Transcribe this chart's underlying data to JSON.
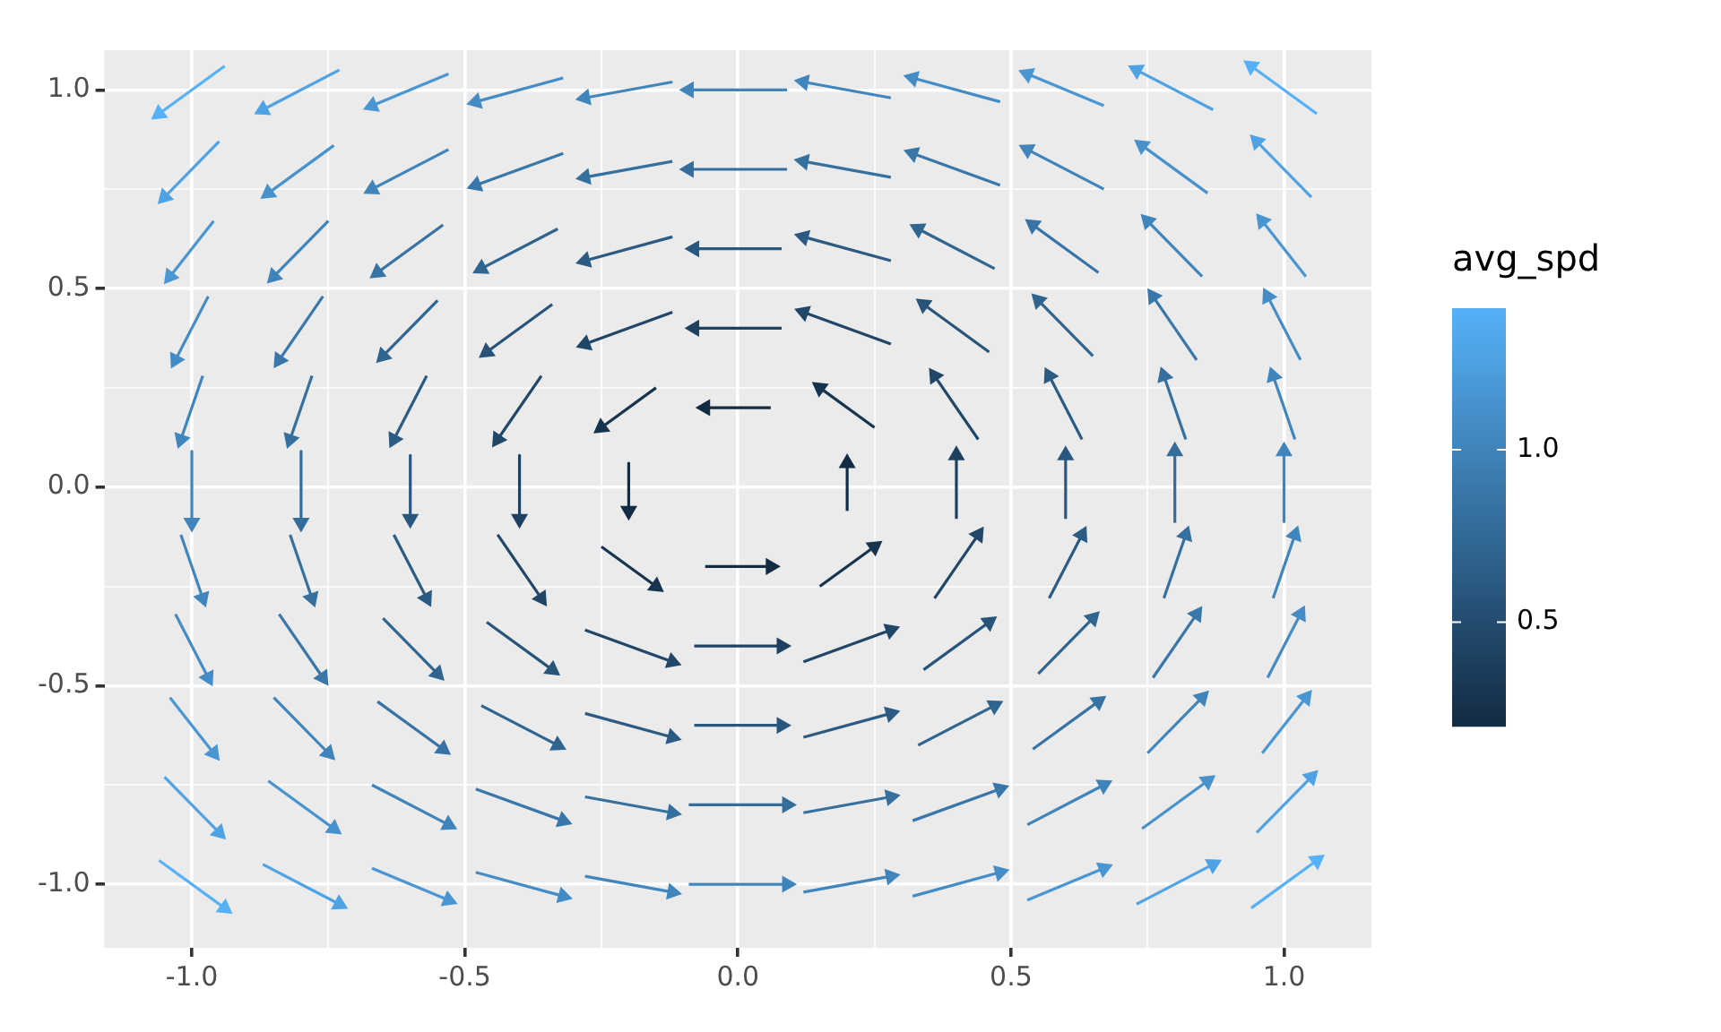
{
  "chart_data": {
    "type": "line",
    "clabel": "avg_spd",
    "clim": [
      0.2,
      1.41
    ],
    "cticks": [
      0.5,
      {
        "value": 1,
        "label": "1.0"
      }
    ],
    "grid": true,
    "marker": "triangle",
    "xlim": [
      -1.16,
      1.16
    ],
    "ylim": [
      -1.16,
      1.1
    ],
    "xticks": [
      {
        "value": -1,
        "label": "-1.0"
      },
      {
        "value": -0.75,
        "label": null
      },
      {
        "value": -0.5,
        "label": "-0.5"
      },
      {
        "value": -0.25,
        "label": null
      },
      {
        "value": 0,
        "label": "0.0"
      },
      {
        "value": 0.25,
        "label": null
      },
      {
        "value": 0.5,
        "label": "0.5"
      },
      {
        "value": 0.75,
        "label": null
      },
      {
        "value": 1,
        "label": "1.0"
      }
    ],
    "yticks": [
      {
        "value": -1,
        "label": "-1.0"
      },
      {
        "value": -0.75,
        "label": null
      },
      {
        "value": -0.5,
        "label": "-0.5"
      },
      {
        "value": -0.25,
        "label": null
      },
      {
        "value": 0,
        "label": "0.0"
      },
      {
        "value": 0.25,
        "label": null
      },
      {
        "value": 0.5,
        "label": "0.5"
      },
      {
        "value": 0.75,
        "label": null
      },
      {
        "value": 1,
        "label": "1.0"
      }
    ],
    "series": [
      {
        "x": [
          -0.94,
          -1.06
        ],
        "values": [
          1.06,
          0.94
        ],
        "color": "#56b1f7"
      },
      {
        "x": [
          -0.73,
          -0.87
        ],
        "values": [
          1.05,
          0.95
        ],
        "color": "#4fa3e4"
      },
      {
        "x": [
          -0.53,
          -0.67
        ],
        "values": [
          1.04,
          0.96
        ],
        "color": "#4996d3"
      },
      {
        "x": [
          -0.32,
          -0.48
        ],
        "values": [
          1.03,
          0.97
        ],
        "color": "#448cc6"
      },
      {
        "x": [
          -0.12,
          -0.28
        ],
        "values": [
          1.02,
          0.98
        ],
        "color": "#4086bd"
      },
      {
        "x": [
          0.09,
          -0.09
        ],
        "values": [
          1.0,
          1.0
        ],
        "color": "#3f84ba"
      },
      {
        "x": [
          0.28,
          0.12
        ],
        "values": [
          0.98,
          1.02
        ],
        "color": "#4086bd"
      },
      {
        "x": [
          0.48,
          0.32
        ],
        "values": [
          0.97,
          1.03
        ],
        "color": "#448cc6"
      },
      {
        "x": [
          0.67,
          0.53
        ],
        "values": [
          0.96,
          1.04
        ],
        "color": "#4996d3"
      },
      {
        "x": [
          0.87,
          0.73
        ],
        "values": [
          0.95,
          1.05
        ],
        "color": "#4fa3e4"
      },
      {
        "x": [
          1.06,
          0.94
        ],
        "values": [
          0.94,
          1.06
        ],
        "color": "#56b1f7"
      },
      {
        "x": [
          -0.95,
          -1.05
        ],
        "values": [
          0.87,
          0.73
        ],
        "color": "#4fa3e4"
      },
      {
        "x": [
          -0.74,
          -0.86
        ],
        "values": [
          0.86,
          0.74
        ],
        "color": "#4792cd"
      },
      {
        "x": [
          -0.53,
          -0.67
        ],
        "values": [
          0.85,
          0.75
        ],
        "color": "#3f84ba"
      },
      {
        "x": [
          -0.32,
          -0.48
        ],
        "values": [
          0.84,
          0.76
        ],
        "color": "#3977aa"
      },
      {
        "x": [
          -0.12,
          -0.28
        ],
        "values": [
          0.82,
          0.78
        ],
        "color": "#35709f"
      },
      {
        "x": [
          0.09,
          -0.09
        ],
        "values": [
          0.8,
          0.8
        ],
        "color": "#346d9c"
      },
      {
        "x": [
          0.28,
          0.12
        ],
        "values": [
          0.78,
          0.82
        ],
        "color": "#35709f"
      },
      {
        "x": [
          0.48,
          0.32
        ],
        "values": [
          0.76,
          0.84
        ],
        "color": "#3977aa"
      },
      {
        "x": [
          0.67,
          0.53
        ],
        "values": [
          0.75,
          0.85
        ],
        "color": "#3f84ba"
      },
      {
        "x": [
          0.86,
          0.74
        ],
        "values": [
          0.74,
          0.86
        ],
        "color": "#4792cd"
      },
      {
        "x": [
          1.05,
          0.95
        ],
        "values": [
          0.73,
          0.87
        ],
        "color": "#4fa3e4"
      },
      {
        "x": [
          -0.96,
          -1.04
        ],
        "values": [
          0.67,
          0.53
        ],
        "color": "#4996d3"
      },
      {
        "x": [
          -0.75,
          -0.85
        ],
        "values": [
          0.67,
          0.53
        ],
        "color": "#3f84ba"
      },
      {
        "x": [
          -0.54,
          -0.66
        ],
        "values": [
          0.66,
          0.54
        ],
        "color": "#3773a4"
      },
      {
        "x": [
          -0.33,
          -0.47
        ],
        "values": [
          0.65,
          0.55
        ],
        "color": "#306590"
      },
      {
        "x": [
          -0.12,
          -0.28
        ],
        "values": [
          0.63,
          0.57
        ],
        "color": "#2b5b83"
      },
      {
        "x": [
          0.08,
          -0.08
        ],
        "values": [
          0.6,
          0.6
        ],
        "color": "#29577f"
      },
      {
        "x": [
          0.28,
          0.12
        ],
        "values": [
          0.57,
          0.63
        ],
        "color": "#2b5b83"
      },
      {
        "x": [
          0.47,
          0.33
        ],
        "values": [
          0.55,
          0.65
        ],
        "color": "#306590"
      },
      {
        "x": [
          0.66,
          0.54
        ],
        "values": [
          0.54,
          0.66
        ],
        "color": "#3773a4"
      },
      {
        "x": [
          0.85,
          0.75
        ],
        "values": [
          0.53,
          0.67
        ],
        "color": "#3f84ba"
      },
      {
        "x": [
          1.04,
          0.96
        ],
        "values": [
          0.53,
          0.67
        ],
        "color": "#4996d3"
      },
      {
        "x": [
          -0.97,
          -1.03
        ],
        "values": [
          0.48,
          0.32
        ],
        "color": "#448cc6"
      },
      {
        "x": [
          -0.76,
          -0.84
        ],
        "values": [
          0.48,
          0.32
        ],
        "color": "#3977aa"
      },
      {
        "x": [
          -0.55,
          -0.65
        ],
        "values": [
          0.47,
          0.33
        ],
        "color": "#306590"
      },
      {
        "x": [
          -0.34,
          -0.46
        ],
        "values": [
          0.46,
          0.34
        ],
        "color": "#28547a"
      },
      {
        "x": [
          -0.12,
          -0.28
        ],
        "values": [
          0.44,
          0.36
        ],
        "color": "#214768"
      },
      {
        "x": [
          0.08,
          -0.08
        ],
        "values": [
          0.4,
          0.4
        ],
        "color": "#1e4161"
      },
      {
        "x": [
          0.28,
          0.12
        ],
        "values": [
          0.36,
          0.44
        ],
        "color": "#214768"
      },
      {
        "x": [
          0.46,
          0.34
        ],
        "values": [
          0.34,
          0.46
        ],
        "color": "#28547a"
      },
      {
        "x": [
          0.65,
          0.55
        ],
        "values": [
          0.33,
          0.47
        ],
        "color": "#306590"
      },
      {
        "x": [
          0.84,
          0.76
        ],
        "values": [
          0.32,
          0.48
        ],
        "color": "#3977aa"
      },
      {
        "x": [
          1.03,
          0.97
        ],
        "values": [
          0.32,
          0.48
        ],
        "color": "#448cc6"
      },
      {
        "x": [
          -0.98,
          -1.02
        ],
        "values": [
          0.28,
          0.12
        ],
        "color": "#4086bd"
      },
      {
        "x": [
          -0.78,
          -0.82
        ],
        "values": [
          0.28,
          0.12
        ],
        "color": "#35709f"
      },
      {
        "x": [
          -0.57,
          -0.63
        ],
        "values": [
          0.28,
          0.12
        ],
        "color": "#2b5b83"
      },
      {
        "x": [
          -0.36,
          -0.44
        ],
        "values": [
          0.28,
          0.12
        ],
        "color": "#214768"
      },
      {
        "x": [
          -0.15,
          -0.25
        ],
        "values": [
          0.25,
          0.15
        ],
        "color": "#17344f"
      },
      {
        "x": [
          0.06,
          -0.06
        ],
        "values": [
          0.2,
          0.2
        ],
        "color": "#132b43"
      },
      {
        "x": [
          0.25,
          0.15
        ],
        "values": [
          0.15,
          0.25
        ],
        "color": "#17344f"
      },
      {
        "x": [
          0.44,
          0.36
        ],
        "values": [
          0.12,
          0.28
        ],
        "color": "#214768"
      },
      {
        "x": [
          0.63,
          0.57
        ],
        "values": [
          0.12,
          0.28
        ],
        "color": "#2b5b83"
      },
      {
        "x": [
          0.82,
          0.78
        ],
        "values": [
          0.12,
          0.28
        ],
        "color": "#35709f"
      },
      {
        "x": [
          1.02,
          0.98
        ],
        "values": [
          0.12,
          0.28
        ],
        "color": "#4086bd"
      },
      {
        "x": [
          -1,
          -1
        ],
        "values": [
          0.09,
          -0.09
        ],
        "color": "#3f84ba"
      },
      {
        "x": [
          -0.8,
          -0.8
        ],
        "values": [
          0.09,
          -0.09
        ],
        "color": "#346d9c"
      },
      {
        "x": [
          -0.6,
          -0.6
        ],
        "values": [
          0.08,
          -0.08
        ],
        "color": "#29577f"
      },
      {
        "x": [
          -0.4,
          -0.4
        ],
        "values": [
          0.08,
          -0.08
        ],
        "color": "#1e4161"
      },
      {
        "x": [
          -0.2,
          -0.2
        ],
        "values": [
          0.06,
          -0.06
        ],
        "color": "#132b43"
      },
      {
        "x": [
          0.2,
          0.2
        ],
        "values": [
          -0.06,
          0.06
        ],
        "color": "#132b43"
      },
      {
        "x": [
          0.4,
          0.4
        ],
        "values": [
          -0.08,
          0.08
        ],
        "color": "#1e4161"
      },
      {
        "x": [
          0.6,
          0.6
        ],
        "values": [
          -0.08,
          0.08
        ],
        "color": "#29577f"
      },
      {
        "x": [
          0.8,
          0.8
        ],
        "values": [
          -0.09,
          0.09
        ],
        "color": "#346d9c"
      },
      {
        "x": [
          1,
          1
        ],
        "values": [
          -0.09,
          0.09
        ],
        "color": "#3f84ba"
      },
      {
        "x": [
          -1.02,
          -0.98
        ],
        "values": [
          -0.12,
          -0.28
        ],
        "color": "#4086bd"
      },
      {
        "x": [
          -0.82,
          -0.78
        ],
        "values": [
          -0.12,
          -0.28
        ],
        "color": "#35709f"
      },
      {
        "x": [
          -0.63,
          -0.57
        ],
        "values": [
          -0.12,
          -0.28
        ],
        "color": "#2b5b83"
      },
      {
        "x": [
          -0.44,
          -0.36
        ],
        "values": [
          -0.12,
          -0.28
        ],
        "color": "#214768"
      },
      {
        "x": [
          -0.25,
          -0.15
        ],
        "values": [
          -0.15,
          -0.25
        ],
        "color": "#17344f"
      },
      {
        "x": [
          -0.06,
          0.06
        ],
        "values": [
          -0.2,
          -0.2
        ],
        "color": "#132b43"
      },
      {
        "x": [
          0.15,
          0.25
        ],
        "values": [
          -0.25,
          -0.15
        ],
        "color": "#17344f"
      },
      {
        "x": [
          0.36,
          0.44
        ],
        "values": [
          -0.28,
          -0.12
        ],
        "color": "#214768"
      },
      {
        "x": [
          0.57,
          0.63
        ],
        "values": [
          -0.28,
          -0.12
        ],
        "color": "#2b5b83"
      },
      {
        "x": [
          0.78,
          0.82
        ],
        "values": [
          -0.28,
          -0.12
        ],
        "color": "#35709f"
      },
      {
        "x": [
          0.98,
          1.02
        ],
        "values": [
          -0.28,
          -0.12
        ],
        "color": "#4086bd"
      },
      {
        "x": [
          -1.03,
          -0.97
        ],
        "values": [
          -0.32,
          -0.48
        ],
        "color": "#448cc6"
      },
      {
        "x": [
          -0.84,
          -0.76
        ],
        "values": [
          -0.32,
          -0.48
        ],
        "color": "#3977aa"
      },
      {
        "x": [
          -0.65,
          -0.55
        ],
        "values": [
          -0.33,
          -0.47
        ],
        "color": "#306590"
      },
      {
        "x": [
          -0.46,
          -0.34
        ],
        "values": [
          -0.34,
          -0.46
        ],
        "color": "#28547a"
      },
      {
        "x": [
          -0.28,
          -0.12
        ],
        "values": [
          -0.36,
          -0.44
        ],
        "color": "#214768"
      },
      {
        "x": [
          -0.08,
          0.08
        ],
        "values": [
          -0.4,
          -0.4
        ],
        "color": "#1e4161"
      },
      {
        "x": [
          0.12,
          0.28
        ],
        "values": [
          -0.44,
          -0.36
        ],
        "color": "#214768"
      },
      {
        "x": [
          0.34,
          0.46
        ],
        "values": [
          -0.46,
          -0.34
        ],
        "color": "#28547a"
      },
      {
        "x": [
          0.55,
          0.65
        ],
        "values": [
          -0.47,
          -0.33
        ],
        "color": "#306590"
      },
      {
        "x": [
          0.76,
          0.84
        ],
        "values": [
          -0.48,
          -0.32
        ],
        "color": "#3977aa"
      },
      {
        "x": [
          0.97,
          1.03
        ],
        "values": [
          -0.48,
          -0.32
        ],
        "color": "#448cc6"
      },
      {
        "x": [
          -1.04,
          -0.96
        ],
        "values": [
          -0.53,
          -0.67
        ],
        "color": "#4996d3"
      },
      {
        "x": [
          -0.85,
          -0.75
        ],
        "values": [
          -0.53,
          -0.67
        ],
        "color": "#3f84ba"
      },
      {
        "x": [
          -0.66,
          -0.54
        ],
        "values": [
          -0.54,
          -0.66
        ],
        "color": "#3773a4"
      },
      {
        "x": [
          -0.47,
          -0.33
        ],
        "values": [
          -0.55,
          -0.65
        ],
        "color": "#306590"
      },
      {
        "x": [
          -0.28,
          -0.12
        ],
        "values": [
          -0.57,
          -0.63
        ],
        "color": "#2b5b83"
      },
      {
        "x": [
          -0.08,
          0.08
        ],
        "values": [
          -0.6,
          -0.6
        ],
        "color": "#29577f"
      },
      {
        "x": [
          0.12,
          0.28
        ],
        "values": [
          -0.63,
          -0.57
        ],
        "color": "#2b5b83"
      },
      {
        "x": [
          0.33,
          0.47
        ],
        "values": [
          -0.65,
          -0.55
        ],
        "color": "#306590"
      },
      {
        "x": [
          0.54,
          0.66
        ],
        "values": [
          -0.66,
          -0.54
        ],
        "color": "#3773a4"
      },
      {
        "x": [
          0.75,
          0.85
        ],
        "values": [
          -0.67,
          -0.53
        ],
        "color": "#3f84ba"
      },
      {
        "x": [
          0.96,
          1.04
        ],
        "values": [
          -0.67,
          -0.53
        ],
        "color": "#4996d3"
      },
      {
        "x": [
          -1.05,
          -0.95
        ],
        "values": [
          -0.73,
          -0.87
        ],
        "color": "#4fa3e4"
      },
      {
        "x": [
          -0.86,
          -0.74
        ],
        "values": [
          -0.74,
          -0.86
        ],
        "color": "#4792cd"
      },
      {
        "x": [
          -0.67,
          -0.53
        ],
        "values": [
          -0.75,
          -0.85
        ],
        "color": "#3f84ba"
      },
      {
        "x": [
          -0.48,
          -0.32
        ],
        "values": [
          -0.76,
          -0.84
        ],
        "color": "#3977aa"
      },
      {
        "x": [
          -0.28,
          -0.12
        ],
        "values": [
          -0.78,
          -0.82
        ],
        "color": "#35709f"
      },
      {
        "x": [
          -0.09,
          0.09
        ],
        "values": [
          -0.8,
          -0.8
        ],
        "color": "#346d9c"
      },
      {
        "x": [
          0.12,
          0.28
        ],
        "values": [
          -0.82,
          -0.78
        ],
        "color": "#35709f"
      },
      {
        "x": [
          0.32,
          0.48
        ],
        "values": [
          -0.84,
          -0.76
        ],
        "color": "#3977aa"
      },
      {
        "x": [
          0.53,
          0.67
        ],
        "values": [
          -0.85,
          -0.75
        ],
        "color": "#3f84ba"
      },
      {
        "x": [
          0.74,
          0.86
        ],
        "values": [
          -0.86,
          -0.74
        ],
        "color": "#4792cd"
      },
      {
        "x": [
          0.95,
          1.05
        ],
        "values": [
          -0.87,
          -0.73
        ],
        "color": "#4fa3e4"
      },
      {
        "x": [
          -1.06,
          -0.94
        ],
        "values": [
          -0.94,
          -1.06
        ],
        "color": "#56b1f7"
      },
      {
        "x": [
          -0.87,
          -0.73
        ],
        "values": [
          -0.95,
          -1.05
        ],
        "color": "#4fa3e4"
      },
      {
        "x": [
          -0.67,
          -0.53
        ],
        "values": [
          -0.96,
          -1.04
        ],
        "color": "#4996d3"
      },
      {
        "x": [
          -0.48,
          -0.32
        ],
        "values": [
          -0.97,
          -1.03
        ],
        "color": "#448cc6"
      },
      {
        "x": [
          -0.28,
          -0.12
        ],
        "values": [
          -0.98,
          -1.02
        ],
        "color": "#4086bd"
      },
      {
        "x": [
          -0.09,
          0.09
        ],
        "values": [
          -1.0,
          -1.0
        ],
        "color": "#3f84ba"
      },
      {
        "x": [
          0.12,
          0.28
        ],
        "values": [
          -1.02,
          -0.98
        ],
        "color": "#4086bd"
      },
      {
        "x": [
          0.32,
          0.48
        ],
        "values": [
          -1.03,
          -0.97
        ],
        "color": "#448cc6"
      },
      {
        "x": [
          0.53,
          0.67
        ],
        "values": [
          -1.04,
          -0.96
        ],
        "color": "#4996d3"
      },
      {
        "x": [
          0.73,
          0.87
        ],
        "values": [
          -1.05,
          -0.95
        ],
        "color": "#4fa3e4"
      },
      {
        "x": [
          0.94,
          1.06
        ],
        "values": [
          -1.06,
          -0.94
        ],
        "color": "#56b1f7"
      }
    ]
  }
}
